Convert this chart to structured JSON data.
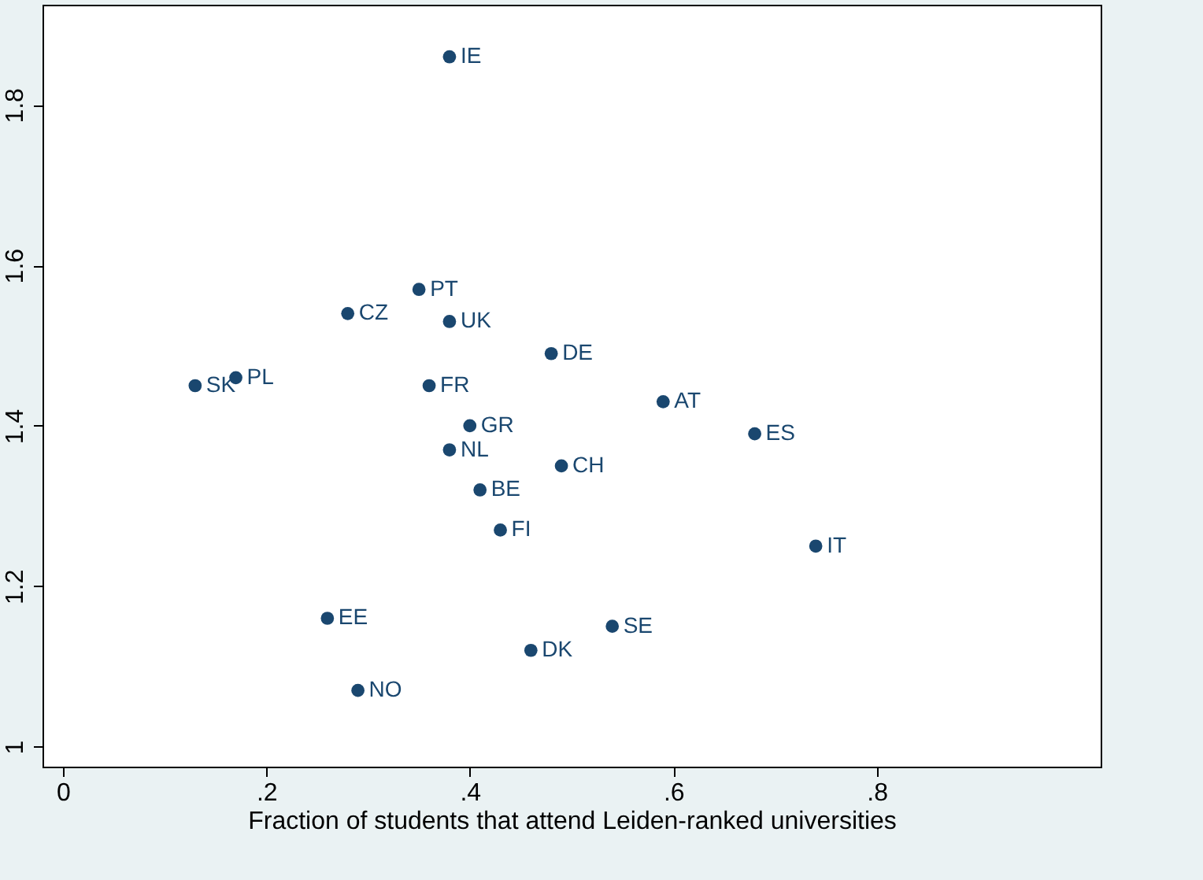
{
  "chart_data": {
    "type": "scatter",
    "xlabel": "Fraction of students that attend Leiden-ranked universities",
    "xlim": [
      -0.02,
      1.02
    ],
    "ylim": [
      0.975,
      1.925
    ],
    "xticks": [
      {
        "value": 0,
        "label": "0"
      },
      {
        "value": 0.2,
        "label": ".2"
      },
      {
        "value": 0.4,
        "label": ".4"
      },
      {
        "value": 0.6,
        "label": ".6"
      },
      {
        "value": 0.8,
        "label": ".8"
      }
    ],
    "yticks": [
      1,
      1.2,
      1.4,
      1.6,
      1.8
    ],
    "grid": false,
    "legend": false,
    "marker": "circle",
    "series": [
      {
        "name": "IE",
        "color": "#1a476f",
        "x": [
          0.38
        ],
        "values": [
          1.86
        ]
      },
      {
        "name": "PT",
        "color": "#1a476f",
        "x": [
          0.35
        ],
        "values": [
          1.57
        ]
      },
      {
        "name": "CZ",
        "color": "#1a476f",
        "x": [
          0.28
        ],
        "values": [
          1.54
        ]
      },
      {
        "name": "UK",
        "color": "#1a476f",
        "x": [
          0.38
        ],
        "values": [
          1.53
        ]
      },
      {
        "name": "DE",
        "color": "#1a476f",
        "x": [
          0.48
        ],
        "values": [
          1.49
        ]
      },
      {
        "name": "SK",
        "color": "#1a476f",
        "x": [
          0.13
        ],
        "values": [
          1.45
        ]
      },
      {
        "name": "PL",
        "color": "#1a476f",
        "x": [
          0.17
        ],
        "values": [
          1.46
        ]
      },
      {
        "name": "FR",
        "color": "#1a476f",
        "x": [
          0.36
        ],
        "values": [
          1.45
        ]
      },
      {
        "name": "AT",
        "color": "#1a476f",
        "x": [
          0.59
        ],
        "values": [
          1.43
        ]
      },
      {
        "name": "GR",
        "color": "#1a476f",
        "x": [
          0.4
        ],
        "values": [
          1.4
        ]
      },
      {
        "name": "ES",
        "color": "#1a476f",
        "x": [
          0.68
        ],
        "values": [
          1.39
        ]
      },
      {
        "name": "NL",
        "color": "#1a476f",
        "x": [
          0.38
        ],
        "values": [
          1.37
        ]
      },
      {
        "name": "CH",
        "color": "#1a476f",
        "x": [
          0.49
        ],
        "values": [
          1.35
        ]
      },
      {
        "name": "BE",
        "color": "#1a476f",
        "x": [
          0.41
        ],
        "values": [
          1.32
        ]
      },
      {
        "name": "FI",
        "color": "#1a476f",
        "x": [
          0.43
        ],
        "values": [
          1.27
        ]
      },
      {
        "name": "IT",
        "color": "#1a476f",
        "x": [
          0.74
        ],
        "values": [
          1.25
        ]
      },
      {
        "name": "EE",
        "color": "#1a476f",
        "x": [
          0.26
        ],
        "values": [
          1.16
        ]
      },
      {
        "name": "SE",
        "color": "#1a476f",
        "x": [
          0.54
        ],
        "values": [
          1.15
        ]
      },
      {
        "name": "DK",
        "color": "#1a476f",
        "x": [
          0.46
        ],
        "values": [
          1.12
        ]
      },
      {
        "name": "NO",
        "color": "#1a476f",
        "x": [
          0.29
        ],
        "values": [
          1.07
        ]
      }
    ]
  }
}
